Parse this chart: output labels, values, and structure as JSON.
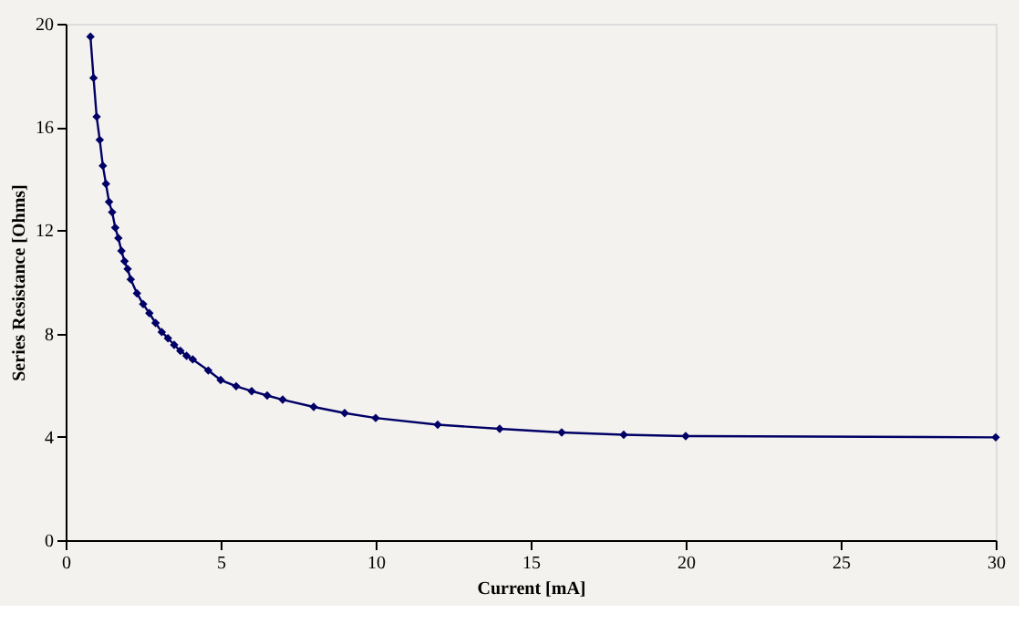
{
  "chart_data": {
    "type": "line",
    "xlabel": "Current [mA]",
    "ylabel": "Series Resistance [Ohms]",
    "x": [
      0.8,
      0.9,
      1.0,
      1.1,
      1.2,
      1.3,
      1.4,
      1.5,
      1.6,
      1.7,
      1.8,
      1.9,
      2.0,
      2.1,
      2.3,
      2.5,
      2.7,
      2.9,
      3.1,
      3.3,
      3.5,
      3.7,
      3.9,
      4.1,
      4.6,
      5,
      5.5,
      6,
      6.5,
      7,
      8,
      9,
      10,
      12,
      14,
      16,
      18,
      20,
      30
    ],
    "series": [
      {
        "color": "#000066",
        "values": [
          19.5,
          17.9,
          16.4,
          15.5,
          14.5,
          13.8,
          13.1,
          12.7,
          12.1,
          11.7,
          11.2,
          10.8,
          10.5,
          10.1,
          9.56,
          9.14,
          8.79,
          8.41,
          8.06,
          7.82,
          7.56,
          7.33,
          7.14,
          7.0,
          6.57,
          6.2,
          5.96,
          5.77,
          5.6,
          5.44,
          5.16,
          4.92,
          4.73,
          4.47,
          4.31,
          4.17,
          4.08,
          4.03,
          3.98
        ]
      }
    ],
    "xlim": [
      0,
      30
    ],
    "ylim": [
      0,
      20
    ],
    "xticks": [
      0,
      5,
      10,
      15,
      20,
      25,
      30
    ],
    "yticks": [
      0,
      4,
      8,
      12,
      16,
      20
    ],
    "grid": false,
    "legend": false,
    "marker": "diamond",
    "line_style": "solid"
  }
}
